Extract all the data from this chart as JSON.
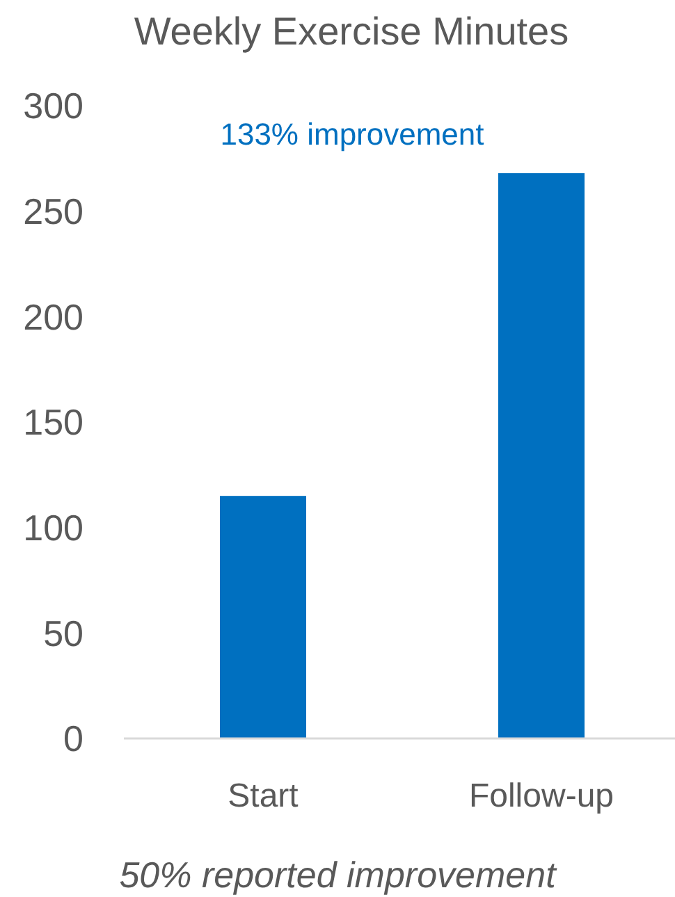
{
  "chart_data": {
    "type": "bar",
    "title": "Weekly Exercise Minutes",
    "categories": [
      "Start",
      "Follow-up"
    ],
    "values": [
      115,
      268
    ],
    "color": "#0070c0",
    "ylim": [
      0,
      300
    ],
    "yticks": [
      0,
      50,
      100,
      150,
      200,
      250,
      300
    ],
    "grid": false,
    "annotations": [
      "133% improvement",
      "50% reported improvement"
    ]
  }
}
